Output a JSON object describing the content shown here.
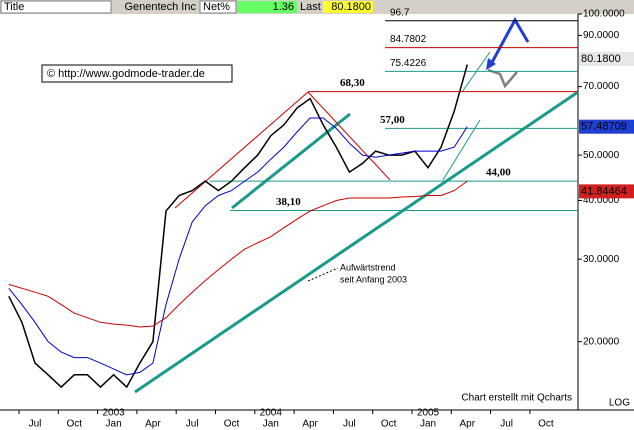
{
  "header": {
    "title": "Title",
    "symbol": "Genentech Inc",
    "net_label": "Net%",
    "net": 1.36,
    "last_label": "Last"
  },
  "chart_data": {
    "type": "line",
    "log": true,
    "source": "© http://www.godmode-trader.de",
    "annotations": [
      "Aufwärtstrend",
      "seit Anfang 2003"
    ],
    "credit": "Chart erstellt mit Qcharts",
    "scale_note": "LOG",
    "years": [
      "2003",
      "2004",
      "2005"
    ],
    "categories": [
      null,
      null,
      "Jul",
      null,
      null,
      "Oct",
      null,
      null,
      "Jan",
      null,
      null,
      "Apr",
      null,
      null,
      "Jul",
      null,
      null,
      "Oct",
      null,
      null,
      "Jan",
      null,
      null,
      "Apr",
      null,
      null,
      "Jul",
      null,
      null,
      "Oct",
      null,
      null,
      "Jan",
      null,
      null,
      "Apr",
      null,
      null,
      "Jul",
      null,
      null,
      "Oct",
      null
    ],
    "series": [
      {
        "color": "#000000",
        "values": [
          25,
          22,
          18,
          17,
          16,
          17,
          17,
          16,
          17,
          16,
          18,
          20,
          38,
          41,
          42,
          44,
          42,
          44,
          47,
          50,
          55,
          58,
          63,
          66,
          58,
          52,
          46,
          48,
          51,
          50,
          50,
          51,
          47,
          52,
          62,
          78,
          null,
          null,
          null,
          null,
          null,
          null,
          null
        ]
      },
      {
        "color": "#0000cc",
        "values": [
          26,
          24,
          22,
          20,
          19,
          18.5,
          18.5,
          18,
          17.5,
          17,
          17.2,
          18,
          24,
          30,
          36,
          39,
          41,
          42,
          44,
          46,
          49,
          52,
          56,
          60,
          60,
          57,
          53,
          50,
          49.5,
          50,
          50.5,
          51,
          51,
          51,
          52,
          57.5,
          null,
          null,
          null,
          null,
          null,
          null,
          null
        ]
      },
      {
        "color": "#cc0000",
        "values": [
          26.5,
          26,
          25.5,
          25,
          24,
          23,
          22.5,
          22,
          21.8,
          21.7,
          21.5,
          21.6,
          22.5,
          24,
          25.5,
          27,
          28.5,
          30,
          31.5,
          32.5,
          33.5,
          35,
          36.5,
          38,
          39,
          40,
          40.5,
          40.5,
          40.5,
          40.5,
          40.7,
          40.8,
          41,
          41,
          42,
          44,
          null,
          null,
          null,
          null,
          null,
          null,
          null
        ]
      }
    ],
    "ylim": [
      14.3,
      107.1
    ],
    "yticks": [
      {
        "value": 100,
        "label": "100.0000"
      },
      {
        "value": 90,
        "label": "90.0000"
      },
      {
        "value": 70,
        "label": "70.0000"
      },
      {
        "value": 50,
        "label": "50.0000"
      },
      {
        "value": 40,
        "label": "40.0000"
      },
      {
        "value": 30,
        "label": "30.0000"
      },
      {
        "value": 20,
        "label": "20.0000"
      }
    ],
    "levels": [
      {
        "value": 96.7,
        "color": "#000000"
      },
      {
        "value": 84.7802,
        "color": "#cc0000"
      },
      {
        "value": 75.4226,
        "color": "#1a9a8a"
      },
      {
        "value": 68.3,
        "label": "68,30",
        "color": "#cc0000"
      },
      {
        "value": 57,
        "label": "57,00",
        "color": "#1a9a8a"
      },
      {
        "value": 44,
        "label": "44,00",
        "color": "#1a9a8a"
      },
      {
        "value": 38.1,
        "label": "38,10",
        "color": "#1a9a8a"
      }
    ],
    "markers": [
      {
        "value": 80.18,
        "label": "80.1800",
        "color": "#e8e8e8",
        "text_color": "#000000"
      },
      {
        "value": 57.48709,
        "color": "#1f3fd0",
        "text_color": "#ffffff"
      },
      {
        "value": 41.84464,
        "color": "#d02020",
        "text_color": "#ffffff"
      }
    ]
  }
}
